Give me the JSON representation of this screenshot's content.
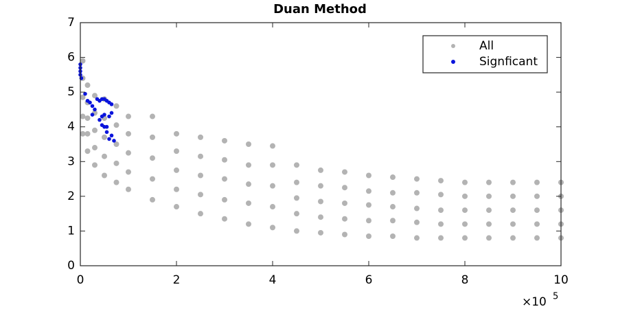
{
  "chart_data": {
    "type": "scatter",
    "title": "Duan Method",
    "x_scale_label": "×10",
    "x_scale_exponent": "5",
    "xlim": [
      0,
      10
    ],
    "xticks": [
      0,
      2,
      4,
      6,
      8,
      10
    ],
    "ylim": [
      0,
      7
    ],
    "yticks": [
      0,
      1,
      2,
      3,
      4,
      5,
      6,
      7
    ],
    "grid": false,
    "legend": "upper right",
    "series": [
      {
        "name": "All",
        "color": "#b3b3b3",
        "x": [
          0.05,
          0.05,
          0.05,
          0.05,
          0.05,
          0.15,
          0.15,
          0.15,
          0.15,
          0.15,
          0.3,
          0.3,
          0.3,
          0.3,
          0.3,
          0.5,
          0.5,
          0.5,
          0.5,
          0.5,
          0.75,
          0.75,
          0.75,
          0.75,
          0.75,
          1,
          1,
          1,
          1,
          1,
          1.5,
          1.5,
          1.5,
          1.5,
          1.5,
          2,
          2,
          2,
          2,
          2,
          2.5,
          2.5,
          2.5,
          2.5,
          2.5,
          3,
          3,
          3,
          3,
          3,
          3.5,
          3.5,
          3.5,
          3.5,
          3.5,
          4,
          4,
          4,
          4,
          4,
          4.5,
          4.5,
          4.5,
          4.5,
          4.5,
          5,
          5,
          5,
          5,
          5,
          5.5,
          5.5,
          5.5,
          5.5,
          5.5,
          6,
          6,
          6,
          6,
          6,
          6.5,
          6.5,
          6.5,
          6.5,
          6.5,
          7,
          7,
          7,
          7,
          7,
          7.5,
          7.5,
          7.5,
          7.5,
          7.5,
          8,
          8,
          8,
          8,
          8,
          8.5,
          8.5,
          8.5,
          8.5,
          8.5,
          9,
          9,
          9,
          9,
          9,
          9.5,
          9.5,
          9.5,
          9.5,
          9.5,
          10,
          10,
          10,
          10,
          10
        ],
        "values": [
          3.8,
          4.3,
          4.85,
          5.4,
          5.9,
          3.3,
          3.8,
          4.25,
          4.7,
          5.2,
          2.9,
          3.4,
          3.9,
          4.4,
          4.9,
          2.6,
          3.15,
          3.7,
          4.25,
          4.8,
          2.4,
          2.95,
          3.5,
          4.05,
          4.6,
          2.2,
          2.7,
          3.25,
          3.8,
          4.3,
          1.9,
          2.5,
          3.1,
          3.7,
          4.3,
          1.7,
          2.2,
          2.75,
          3.3,
          3.8,
          1.5,
          2.05,
          2.6,
          3.15,
          3.7,
          1.35,
          1.9,
          2.5,
          3.05,
          3.6,
          1.2,
          1.8,
          2.35,
          2.9,
          3.5,
          1.1,
          1.7,
          2.3,
          2.9,
          3.45,
          1.0,
          1.5,
          1.95,
          2.4,
          2.9,
          0.95,
          1.4,
          1.85,
          2.3,
          2.75,
          0.9,
          1.35,
          1.8,
          2.25,
          2.7,
          0.85,
          1.3,
          1.75,
          2.15,
          2.6,
          0.85,
          1.3,
          1.7,
          2.1,
          2.55,
          0.8,
          1.25,
          1.65,
          2.1,
          2.5,
          0.8,
          1.2,
          1.6,
          2.05,
          2.45,
          0.8,
          1.2,
          1.6,
          2.0,
          2.4,
          0.8,
          1.2,
          1.6,
          2.0,
          2.4,
          0.8,
          1.2,
          1.6,
          2.0,
          2.4,
          0.8,
          1.2,
          1.6,
          2.0,
          2.4,
          0.8,
          1.2,
          1.6,
          2.0,
          2.4
        ]
      },
      {
        "name": "Signficant",
        "color": "#0a14dc",
        "x": [
          0,
          0,
          0,
          0,
          0.02,
          0.1,
          0.15,
          0.2,
          0.25,
          0.3,
          0.25,
          0.35,
          0.4,
          0.45,
          0.5,
          0.55,
          0.6,
          0.65,
          0.4,
          0.45,
          0.5,
          0.55,
          0.5,
          0.6,
          0.65,
          0.55,
          0.6,
          0.7,
          0.65,
          0.45
        ],
        "values": [
          5.8,
          5.7,
          5.6,
          5.5,
          5.4,
          4.95,
          4.75,
          4.7,
          4.6,
          4.5,
          4.35,
          4.8,
          4.75,
          4.8,
          4.8,
          4.75,
          4.7,
          4.65,
          4.2,
          4.05,
          4.0,
          4.0,
          4.35,
          4.3,
          4.4,
          3.85,
          3.65,
          3.6,
          3.75,
          4.3
        ]
      }
    ]
  }
}
